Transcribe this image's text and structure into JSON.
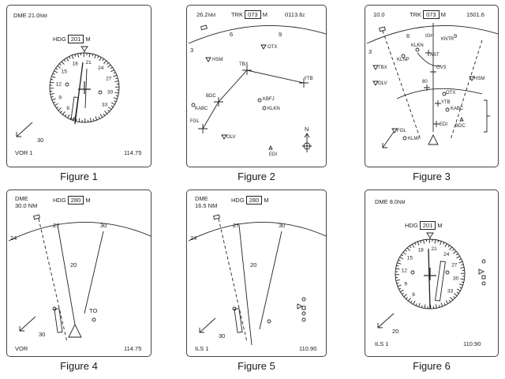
{
  "figures": [
    {
      "caption": "Figure 1",
      "dme_label": "DME 21.0",
      "dme_unit": "NM",
      "hdg_label": "HDG",
      "hdg_value": "201",
      "hdg_unit": "M",
      "wind_speed": "30",
      "source": "VOR 1",
      "frequency": "114.75",
      "compass_labels": [
        "12",
        "15",
        "18",
        "21",
        "24",
        "27",
        "30",
        "33",
        "6",
        "9"
      ]
    },
    {
      "caption": "Figure 2",
      "range": "26.2",
      "range_unit": "NM",
      "trk_label": "TRK",
      "trk_value": "073",
      "trk_unit": "M",
      "time": "0113.6",
      "time_unit": "z",
      "scale_labels": [
        "3",
        "6",
        "9"
      ],
      "waypoints": [
        "HSM",
        "OTX",
        "TBX",
        "YTB",
        "BDC",
        "KABC",
        "KBFJ",
        "KLKN",
        "FGL",
        "OLV",
        "EDI"
      ],
      "north_label": "N"
    },
    {
      "caption": "Figure 3",
      "range": "10.0",
      "trk_label": "TRK",
      "trk_value": "073",
      "trk_unit": "M",
      "time": "1501.6",
      "scale_labels": [
        "3",
        "6",
        "9"
      ],
      "waypoints": [
        "IGH",
        "KNTR",
        "KLKN",
        "AST",
        "KLNP",
        "TBX",
        "GVS",
        "HSM",
        "OLV",
        "OTX",
        "KABC",
        "YTB",
        "EDI",
        "BDC",
        "FGL",
        "KLMI"
      ],
      "altitude_label": "80"
    },
    {
      "caption": "Figure 4",
      "dme_label": "DME",
      "dme_value": "30.0 NM",
      "hdg_label": "HDG",
      "hdg_value": "280",
      "hdg_unit": "M",
      "scale_labels": [
        "24",
        "27",
        "30"
      ],
      "bearing_label": "20",
      "to_from": "TO",
      "wind_speed": "30",
      "source": "VOR",
      "frequency": "114.75"
    },
    {
      "caption": "Figure 5",
      "dme_label": "DME",
      "dme_value": "16.5 NM",
      "hdg_label": "HDG",
      "hdg_value": "280",
      "hdg_unit": "M",
      "scale_labels": [
        "24",
        "27",
        "30"
      ],
      "bearing_label": "20",
      "wind_speed": "30",
      "source": "ILS 1",
      "frequency": "110.90"
    },
    {
      "caption": "Figure 6",
      "dme_label": "DME 8.0",
      "dme_unit": "NM",
      "hdg_label": "HDG",
      "hdg_value": "201",
      "hdg_unit": "M",
      "wind_speed": "20",
      "source": "ILS 1",
      "frequency": "110.90",
      "compass_labels": [
        "12",
        "15",
        "18",
        "21",
        "24",
        "27",
        "30",
        "33",
        "6",
        "9"
      ]
    }
  ]
}
